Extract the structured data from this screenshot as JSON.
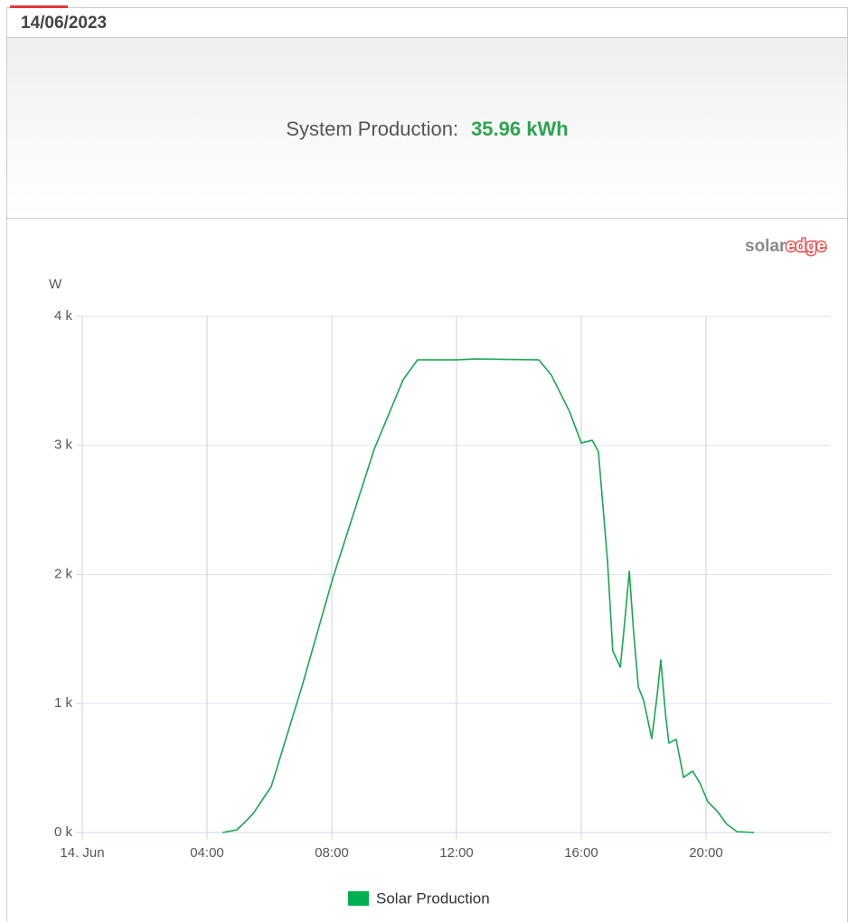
{
  "header": {
    "date": "14/06/2023"
  },
  "summary": {
    "label": "System Production:",
    "value": "35.96 kWh"
  },
  "logo": {
    "parts": [
      "solar",
      "edge"
    ]
  },
  "chart_data": {
    "type": "line",
    "y_label": "W",
    "x": [
      4.5,
      4.96,
      5.2,
      5.48,
      6.06,
      7.04,
      8.03,
      9.36,
      10.29,
      10.75,
      12.0,
      12.6,
      14.64,
      15.04,
      15.62,
      16.0,
      16.35,
      16.55,
      16.84,
      17.01,
      17.25,
      17.36,
      17.54,
      17.68,
      17.83,
      18.0,
      18.26,
      18.43,
      18.55,
      18.7,
      18.81,
      19.04,
      19.28,
      19.57,
      19.8,
      20.06,
      20.35,
      20.67,
      20.99,
      21.54
    ],
    "series": [
      {
        "name": "Solar Production",
        "color": "#1aa653",
        "legend_color": "#00b050",
        "values": [
          0,
          21,
          77,
          147,
          357,
          1128,
          1968,
          2970,
          3510,
          3663,
          3663,
          3670,
          3663,
          3545,
          3264,
          3019,
          3040,
          2950,
          2108,
          1408,
          1282,
          1548,
          2025,
          1548,
          1128,
          1023,
          728,
          1058,
          1338,
          918,
          693,
          722,
          427,
          476,
          385,
          238,
          168,
          63,
          7,
          0
        ]
      }
    ],
    "xlim": [
      0,
      24
    ],
    "ylim": [
      0,
      4000
    ],
    "xticks": [
      {
        "value": 0,
        "label": "14. Jun"
      },
      {
        "value": 4,
        "label": "04:00"
      },
      {
        "value": 8,
        "label": "08:00"
      },
      {
        "value": 12,
        "label": "12:00"
      },
      {
        "value": 16,
        "label": "16:00"
      },
      {
        "value": 20,
        "label": "20:00"
      }
    ],
    "yticks": [
      {
        "value": 0,
        "label": "0 k"
      },
      {
        "value": 1000,
        "label": "1 k"
      },
      {
        "value": 2000,
        "label": "2 k"
      },
      {
        "value": 3000,
        "label": "3 k"
      },
      {
        "value": 4000,
        "label": "4 k"
      }
    ],
    "grid": true
  }
}
